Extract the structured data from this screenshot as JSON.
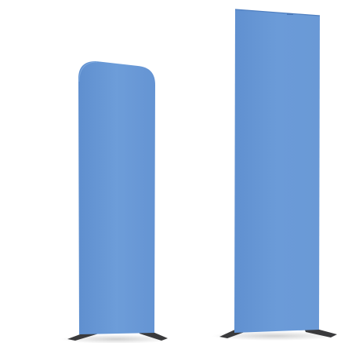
{
  "scene": {
    "background_color": "#ffffff",
    "panel_color": "#6a9ad6",
    "panel_shadow_color": "#4e7fbf",
    "foot_color": "#3a3a3c",
    "displays": [
      {
        "name": "rounded-top-fabric-display"
      },
      {
        "name": "straight-fabric-display"
      }
    ]
  }
}
